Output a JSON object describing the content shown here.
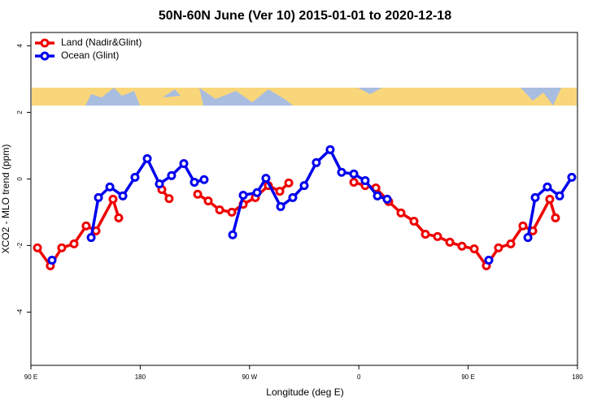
{
  "chart_data": {
    "type": "line",
    "title": "50N-60N June (Ver 10)   2015-01-01 to 2020-12-18",
    "xlabel": "Longitude (deg E)",
    "ylabel": "XCO2 - MLO trend (ppm)",
    "xlim": [
      90,
      540
    ],
    "xticks": [
      {
        "value": 90,
        "label": "90 E"
      },
      {
        "value": 180,
        "label": "180"
      },
      {
        "value": 270,
        "label": "90 W"
      },
      {
        "value": 360,
        "label": "0"
      },
      {
        "value": 450,
        "label": "90 E"
      },
      {
        "value": 540,
        "label": "180"
      }
    ],
    "ylim": [
      -5.6,
      4.4
    ],
    "yticks": [
      -4,
      -2,
      0,
      2,
      4
    ],
    "legend": "topleft",
    "series": [
      {
        "name": "Land (Nadir&Glint)",
        "color": "#ee0000",
        "x": [
          95.4,
          106,
          115.4,
          125.5,
          135.5,
          143.6,
          157.6,
          162.3,
          null,
          197.8,
          203.8,
          null,
          227.3,
          236,
          245.4,
          255.4,
          264.8,
          274.8,
          285.5,
          294.9,
          302.3,
          null,
          355.9,
          365.2,
          374,
          384.6,
          394.7,
          405.4,
          414.8,
          424.8,
          434.9,
          444.9,
          455,
          465,
          475,
          485.1,
          495.1,
          503.2,
          517.2,
          521.9
        ],
        "values": [
          -2.07,
          -2.61,
          -2.07,
          -1.95,
          -1.41,
          -1.56,
          -0.61,
          -1.17,
          null,
          -0.32,
          -0.59,
          null,
          -0.46,
          -0.66,
          -0.93,
          -1.0,
          -0.76,
          -0.56,
          -0.2,
          -0.37,
          -0.12,
          null,
          -0.1,
          -0.2,
          -0.27,
          -0.68,
          -1.02,
          -1.27,
          -1.66,
          -1.73,
          -1.9,
          -2.02,
          -2.1,
          -2.61,
          -2.07,
          -1.95,
          -1.41,
          -1.56,
          -0.61,
          -1.17
        ]
      },
      {
        "name": "Ocean (Glint)",
        "color": "#0000ee",
        "x": [
          107.4,
          null,
          139.6,
          145.6,
          155,
          165.7,
          175.7,
          185.8,
          195.8,
          205.8,
          215.9,
          224.6,
          232.6,
          null,
          256.1,
          264.8,
          276.2,
          283.5,
          295.6,
          305.6,
          315,
          325,
          336.4,
          345.8,
          355.9,
          365.2,
          375.3,
          383.3,
          null,
          467,
          null,
          499.2,
          505.2,
          515.2,
          525.3,
          535.3
        ],
        "values": [
          -2.44,
          null,
          -1.76,
          -0.56,
          -0.24,
          -0.51,
          0.05,
          0.61,
          -0.15,
          0.1,
          0.46,
          -0.1,
          -0.02,
          null,
          -1.68,
          -0.49,
          -0.41,
          0.02,
          -0.83,
          -0.56,
          -0.2,
          0.49,
          0.88,
          0.2,
          0.15,
          -0.05,
          -0.51,
          -0.61,
          null,
          -2.44,
          null,
          -1.76,
          -0.56,
          -0.24,
          -0.51,
          0.05
        ]
      }
    ]
  }
}
